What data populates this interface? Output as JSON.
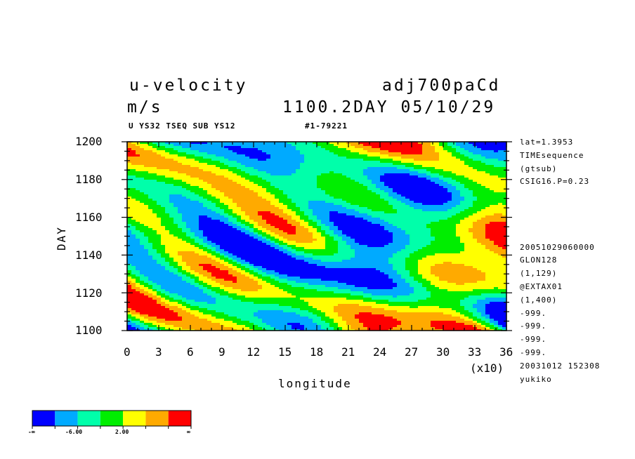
{
  "header": {
    "variable": "u-velocity",
    "experiment": "adj700paCd",
    "units": "m/s",
    "time": "1100.2DAY 05/10/29",
    "subtitle": "U YS32 TSEQ SUB YS12",
    "record": "#1-79221"
  },
  "side_info": {
    "top": [
      "lat=1.3953",
      "TIMEsequence",
      "(gtsub)",
      "CSIG16.P=0.23"
    ],
    "bottom": [
      "20051029060000",
      "GLON128",
      "(1,129)",
      "@EXTAX01",
      "(1,400)",
      "-999.",
      "-999.",
      "-999.",
      "-999.",
      "20031012 152308",
      "yukiko"
    ]
  },
  "chart_data": {
    "type": "heatmap",
    "xlabel": "longitude",
    "xscale_note": "(x10)",
    "ylabel": "DAY",
    "xlim": [
      0,
      36
    ],
    "ylim": [
      1100,
      1200
    ],
    "x_ticks": [
      "0",
      "3",
      "6",
      "9",
      "12",
      "15",
      "18",
      "21",
      "24",
      "27",
      "30",
      "33",
      "36"
    ],
    "y_ticks": [
      "1100",
      "1120",
      "1140",
      "1160",
      "1180",
      "1200"
    ],
    "colorbar": {
      "colors": [
        "#0000ff",
        "#00aaff",
        "#00ffaa",
        "#00ee00",
        "#ffff00",
        "#ffaa00",
        "#ff0000"
      ],
      "labels": [
        "-∞",
        "-6.00",
        "2.00",
        "∞"
      ]
    }
  }
}
